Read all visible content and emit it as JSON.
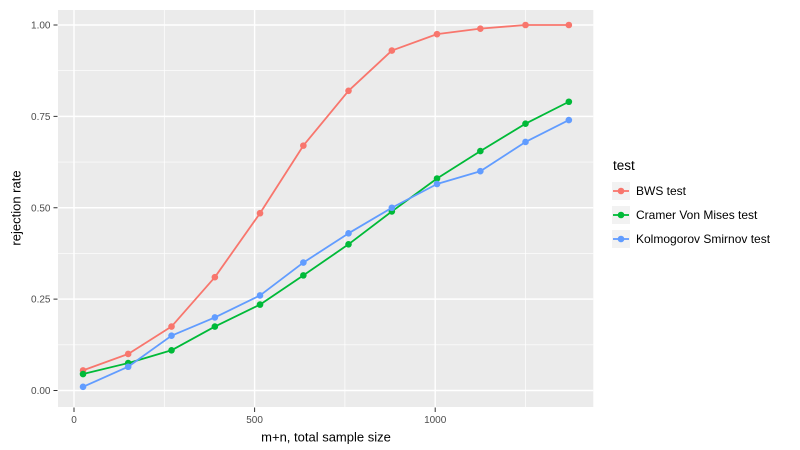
{
  "chart_data": {
    "type": "line",
    "title": "",
    "xlabel": "m+n, total sample size",
    "ylabel": "rejection rate",
    "legend_title": "test",
    "legend_position": "right",
    "grid": true,
    "xlim": [
      -45,
      1437
    ],
    "ylim": [
      -0.045,
      1.04
    ],
    "x_ticks": {
      "major": [
        0,
        500,
        1000
      ],
      "minor": [
        250,
        750,
        1250
      ],
      "labels": [
        "0",
        "500",
        "1000"
      ]
    },
    "y_ticks": {
      "major": [
        0,
        0.25,
        0.5,
        0.75,
        1.0
      ],
      "minor": [
        0.125,
        0.375,
        0.625,
        0.875
      ],
      "labels": [
        "0.00",
        "0.25",
        "0.50",
        "0.75",
        "1.00"
      ]
    },
    "x": [
      25,
      150,
      270,
      390,
      515,
      635,
      760,
      880,
      1005,
      1125,
      1250,
      1370
    ],
    "series": [
      {
        "name": "BWS test",
        "color": "#F8766D",
        "values": [
          0.055,
          0.1,
          0.175,
          0.31,
          0.485,
          0.67,
          0.82,
          0.93,
          0.975,
          0.99,
          1.0,
          1.0
        ]
      },
      {
        "name": "Cramer Von Mises test",
        "color": "#00BA38",
        "values": [
          0.045,
          0.075,
          0.11,
          0.175,
          0.235,
          0.315,
          0.4,
          0.49,
          0.58,
          0.655,
          0.73,
          0.79
        ]
      },
      {
        "name": "Kolmogorov Smirnov test",
        "color": "#619CFF",
        "values": [
          0.01,
          0.065,
          0.15,
          0.2,
          0.26,
          0.35,
          0.43,
          0.5,
          0.565,
          0.6,
          0.68,
          0.74
        ]
      }
    ],
    "colors": {
      "panel_background": "#EBEBEB",
      "gridline": "#FFFFFF",
      "tick_mark": "#333333",
      "tick_label": "#4D4D4D",
      "legend_key_background": "#F2F2F2",
      "page_background": "#FFFFFF"
    }
  }
}
